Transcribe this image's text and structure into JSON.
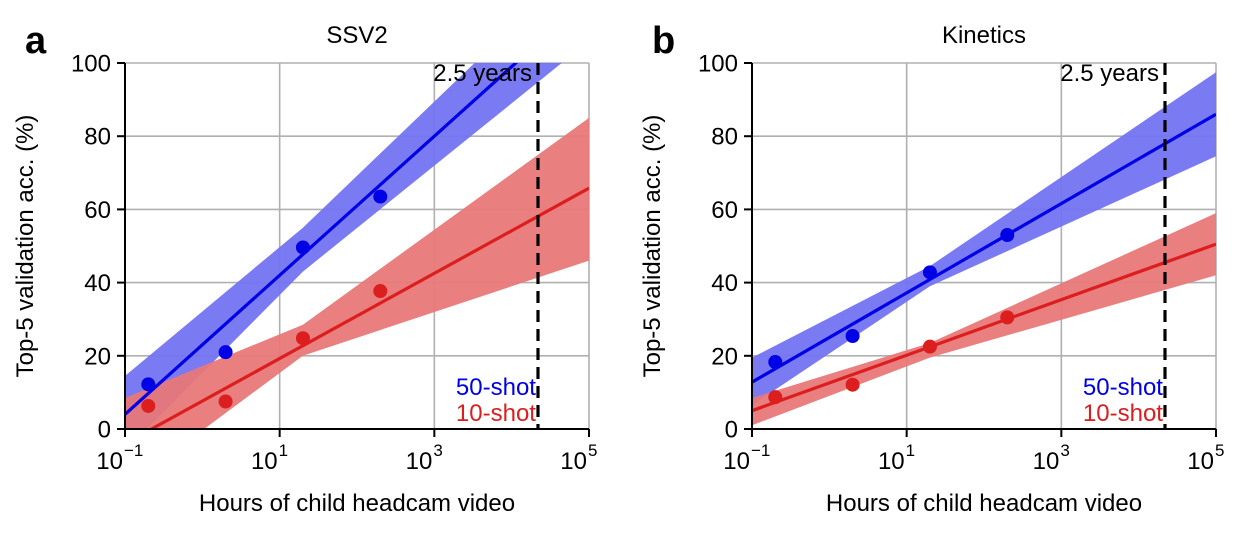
{
  "chart_data": [
    {
      "panel_label": "a",
      "type": "scatter",
      "title": "SSV2",
      "xlabel": "Hours of child headcam video",
      "ylabel": "Top-5 validation acc. (%)",
      "xscale": "log",
      "xlim": [
        0.1,
        100000
      ],
      "ylim": [
        0,
        100
      ],
      "xticks": [
        0.1,
        10,
        1000,
        100000
      ],
      "xtick_labels": [
        [
          "10",
          "−1"
        ],
        [
          "10",
          "1"
        ],
        [
          "10",
          "3"
        ],
        [
          "10",
          "5"
        ]
      ],
      "yticks": [
        0,
        20,
        40,
        60,
        80,
        100
      ],
      "ytick_labels": [
        "0",
        "20",
        "40",
        "60",
        "80",
        "100"
      ],
      "grid": true,
      "vline": {
        "x": 21900,
        "label": "2.5 years",
        "style": "dashed"
      },
      "legend_position": "bottom-right",
      "series": [
        {
          "name": "50-shot",
          "color": "#0000e6",
          "band_color": "#7373f2",
          "x": [
            0.2,
            2,
            20,
            200
          ],
          "y": [
            12.2,
            21.0,
            49.6,
            63.5
          ],
          "fit": {
            "x": [
              0.1,
              100000
            ],
            "y": [
              4.0,
              118.0
            ]
          },
          "band_upper": {
            "x": [
              0.1,
              20,
              100000
            ],
            "y": [
              14.5,
              55.0,
              130.0
            ]
          },
          "band_lower": {
            "x": [
              0.1,
              20,
              100000
            ],
            "y": [
              -6.0,
              43.0,
              106.0
            ]
          }
        },
        {
          "name": "10-shot",
          "color": "#dc1e1e",
          "band_color": "#e87878",
          "x": [
            0.2,
            2,
            20,
            200
          ],
          "y": [
            6.3,
            7.5,
            24.8,
            37.7
          ],
          "fit": {
            "x": [
              0.1,
              100000
            ],
            "y": [
              -4.0,
              65.8
            ]
          },
          "band_upper": {
            "x": [
              0.1,
              20,
              100000
            ],
            "y": [
              8.5,
              28.5,
              85.0
            ]
          },
          "band_lower": {
            "x": [
              0.1,
              20,
              100000
            ],
            "y": [
              -16.0,
              20.0,
              46.0
            ]
          }
        }
      ]
    },
    {
      "panel_label": "b",
      "type": "scatter",
      "title": "Kinetics",
      "xlabel": "Hours of child headcam video",
      "ylabel": "Top-5 validation acc. (%)",
      "xscale": "log",
      "xlim": [
        0.1,
        100000
      ],
      "ylim": [
        0,
        100
      ],
      "xticks": [
        0.1,
        10,
        1000,
        100000
      ],
      "xtick_labels": [
        [
          "10",
          "−1"
        ],
        [
          "10",
          "1"
        ],
        [
          "10",
          "3"
        ],
        [
          "10",
          "5"
        ]
      ],
      "yticks": [
        0,
        20,
        40,
        60,
        80,
        100
      ],
      "ytick_labels": [
        "0",
        "20",
        "40",
        "60",
        "80",
        "100"
      ],
      "grid": true,
      "vline": {
        "x": 21900,
        "label": "2.5 years",
        "style": "dashed"
      },
      "legend_position": "bottom-right",
      "series": [
        {
          "name": "50-shot",
          "color": "#0000e6",
          "band_color": "#7373f2",
          "x": [
            0.2,
            2,
            20,
            200
          ],
          "y": [
            18.3,
            25.4,
            42.8,
            53.0
          ],
          "fit": {
            "x": [
              0.1,
              100000
            ],
            "y": [
              12.8,
              86.0
            ]
          },
          "band_upper": {
            "x": [
              0.1,
              20,
              100000
            ],
            "y": [
              19.5,
              44.5,
              97.5
            ]
          },
          "band_lower": {
            "x": [
              0.1,
              20,
              100000
            ],
            "y": [
              6.5,
              39.0,
              74.5
            ]
          }
        },
        {
          "name": "10-shot",
          "color": "#dc1e1e",
          "band_color": "#e87878",
          "x": [
            0.2,
            2,
            20,
            200
          ],
          "y": [
            8.7,
            12.1,
            22.5,
            30.5
          ],
          "fit": {
            "x": [
              0.1,
              100000
            ],
            "y": [
              5.0,
              50.5
            ]
          },
          "band_upper": {
            "x": [
              0.1,
              20,
              100000
            ],
            "y": [
              8.5,
              23.5,
              59.0
            ]
          },
          "band_lower": {
            "x": [
              0.1,
              20,
              100000
            ],
            "y": [
              1.0,
              19.5,
              42.0
            ]
          }
        }
      ]
    }
  ]
}
